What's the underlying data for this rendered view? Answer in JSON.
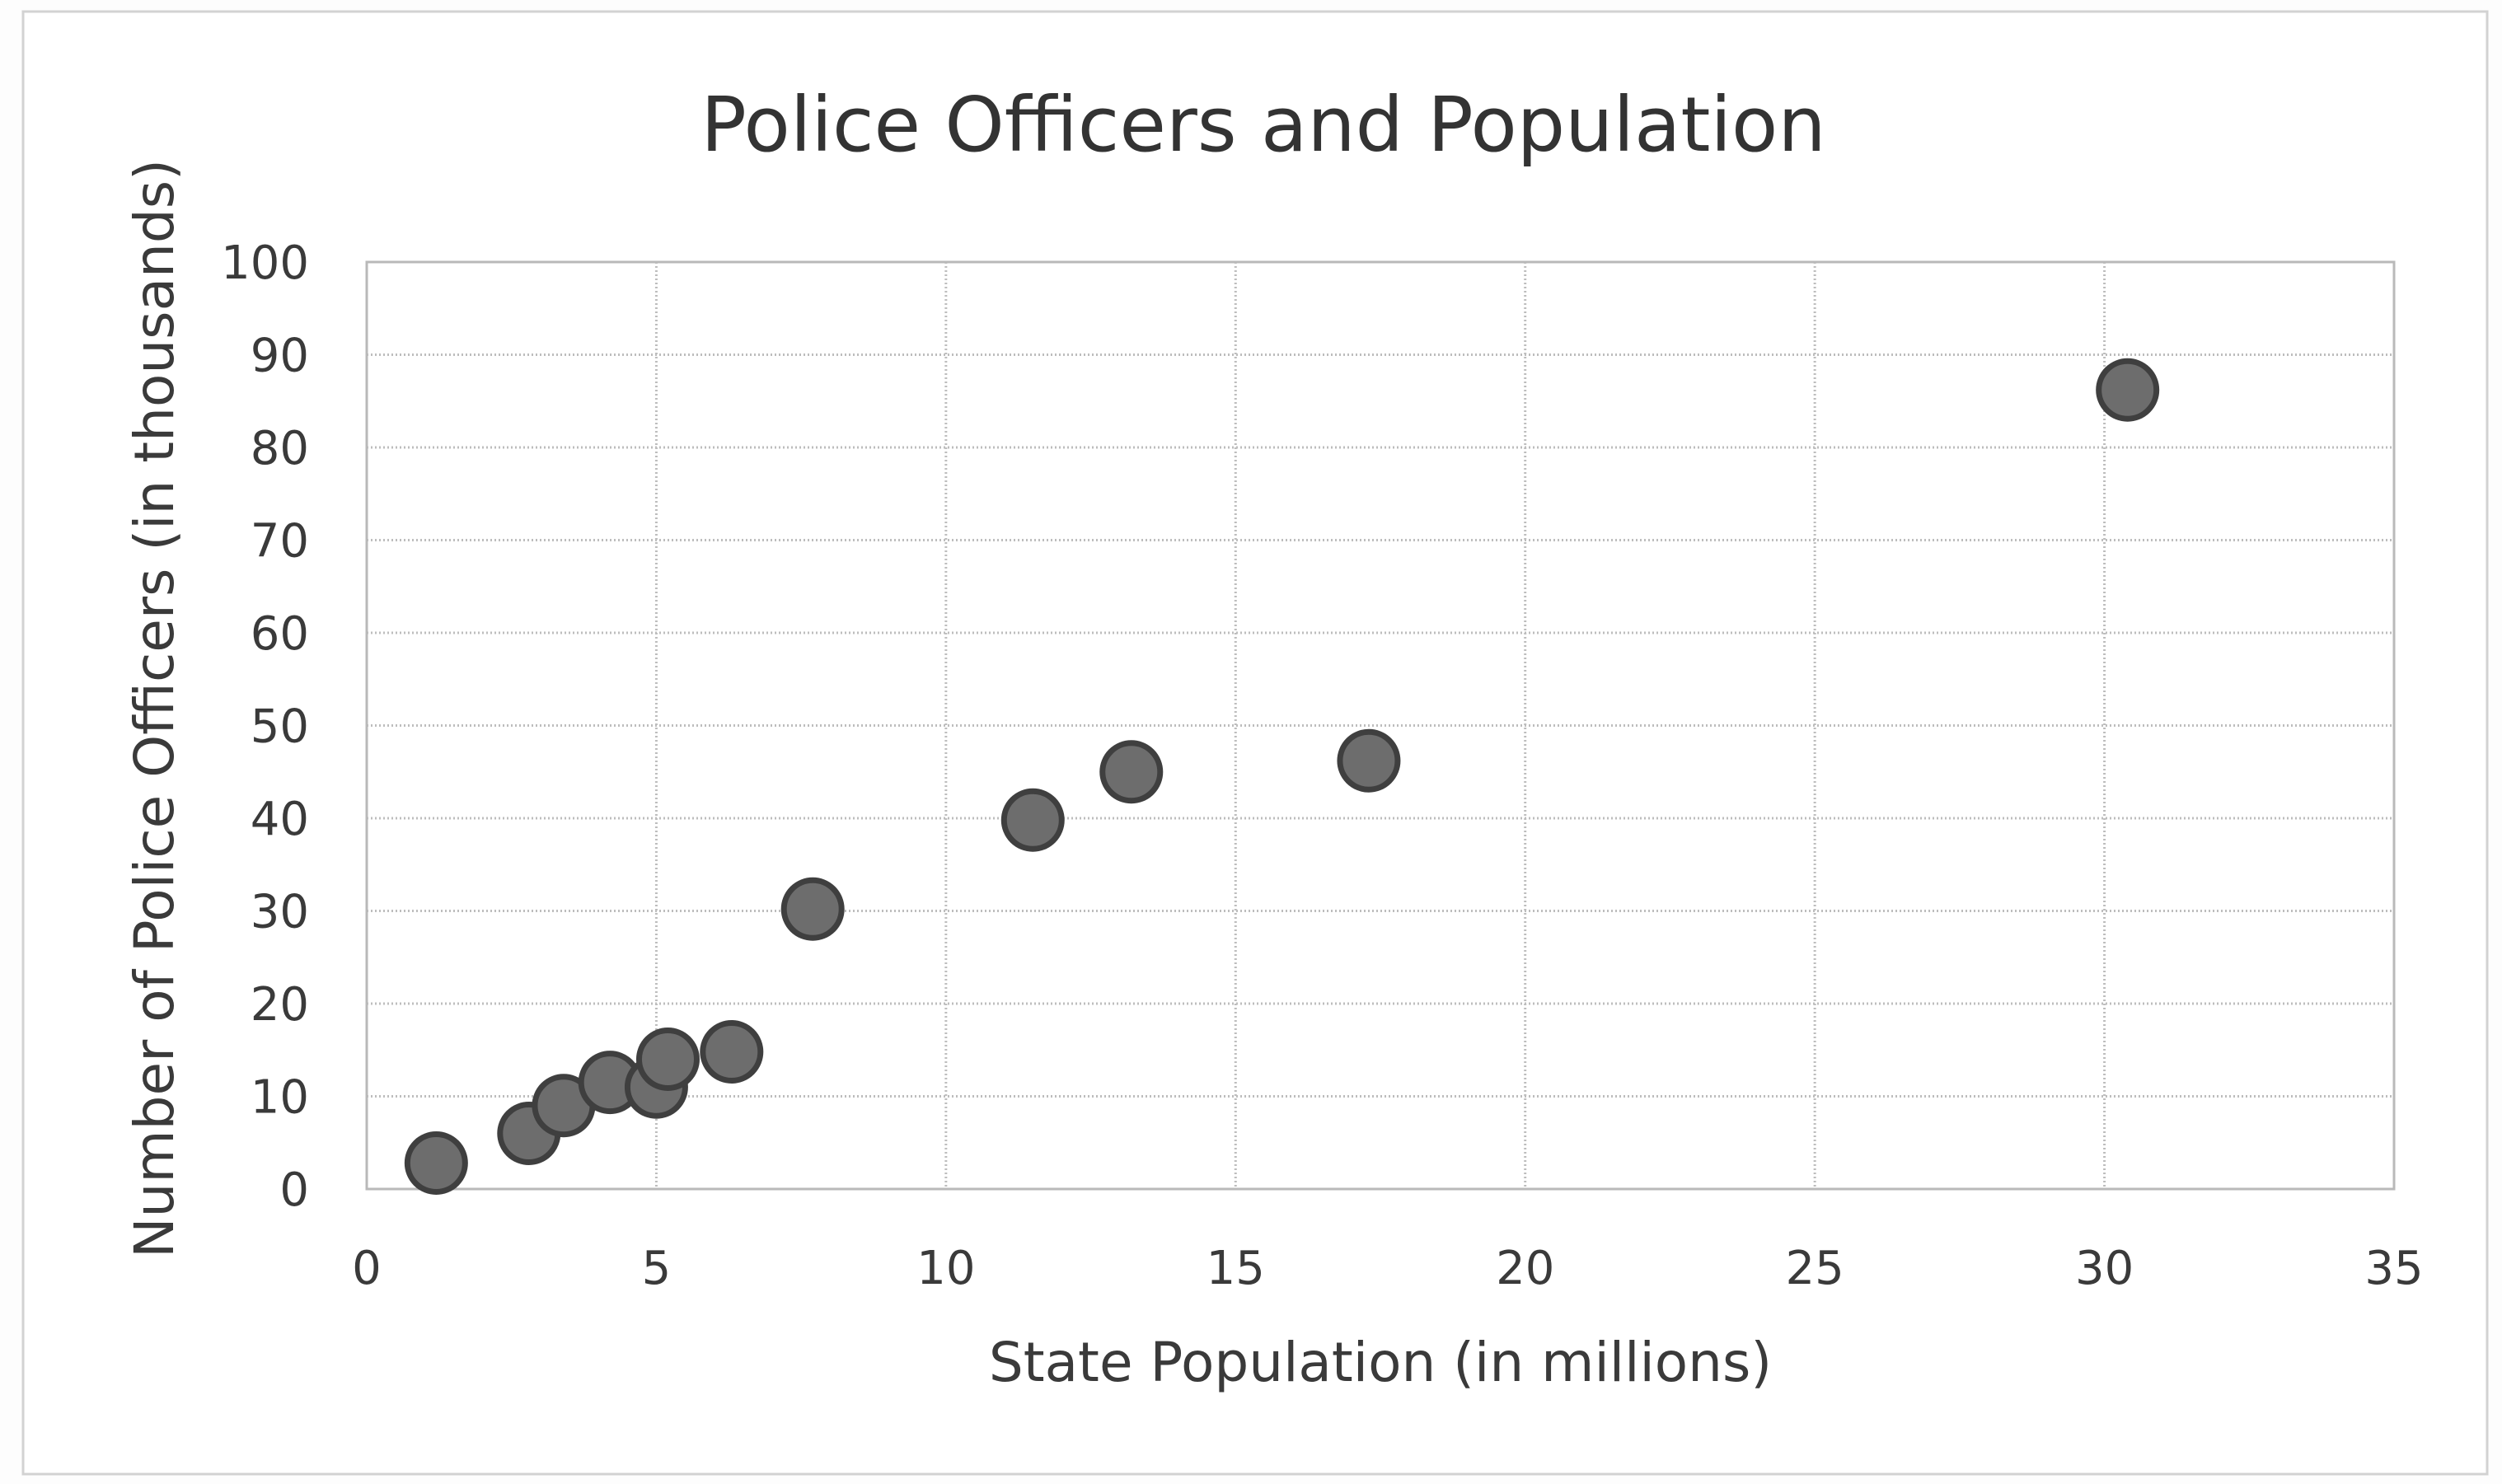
{
  "chart_data": {
    "type": "scatter",
    "title": "Police Officers and Population",
    "xlabel": "State Population (in millions)",
    "ylabel": "Number of Police Officers (in thousands)",
    "xlim": [
      0,
      35
    ],
    "ylim": [
      0,
      100
    ],
    "x_ticks": [
      0,
      5,
      10,
      15,
      20,
      25,
      30,
      35
    ],
    "y_ticks": [
      0,
      10,
      20,
      30,
      40,
      50,
      60,
      70,
      80,
      90,
      100
    ],
    "grid": true,
    "legend": "none",
    "point_color": "#6d6d6d",
    "series": [
      {
        "points": [
          {
            "x": 1.2,
            "y": 2.8
          },
          {
            "x": 2.8,
            "y": 6.0
          },
          {
            "x": 3.4,
            "y": 9.0
          },
          {
            "x": 4.2,
            "y": 11.5
          },
          {
            "x": 5.0,
            "y": 11.0
          },
          {
            "x": 5.2,
            "y": 14.0
          },
          {
            "x": 6.3,
            "y": 14.8
          },
          {
            "x": 7.7,
            "y": 30.2
          },
          {
            "x": 11.5,
            "y": 39.8
          },
          {
            "x": 13.2,
            "y": 45.0
          },
          {
            "x": 17.3,
            "y": 46.2
          },
          {
            "x": 30.4,
            "y": 86.2
          }
        ]
      }
    ]
  }
}
